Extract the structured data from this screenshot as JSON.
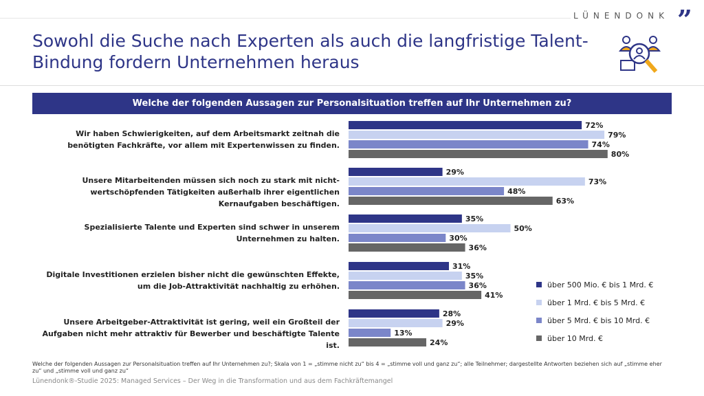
{
  "header": {
    "title": "Sowohl die Suche nach Experten als auch die langfristige Talent-Bindung fordern Unternehmen heraus",
    "logo": "LÜNENDONK",
    "icon": "talent-search-icon"
  },
  "chart_data": {
    "type": "bar",
    "orientation": "horizontal",
    "title": "Welche der folgenden Aussagen zur Personalsituation treffen auf Ihr Unternehmen zu?",
    "categories": [
      "Wir haben Schwierigkeiten, auf dem Arbeitsmarkt zeitnah die benötigten Fachkräfte, vor allem mit Expertenwissen zu finden.",
      "Unsere Mitarbeitenden müssen sich noch zu stark mit nicht-wertschöpfenden Tätigkeiten außerhalb ihrer eigentlichen Kernaufgaben beschäftigen.",
      "Spezialisierte Talente und Experten sind schwer in unserem Unternehmen zu halten.",
      "Digitale Investitionen erzielen bisher nicht die gewünschten Effekte, um die Job-Attraktivität nachhaltig zu erhöhen.",
      "Unsere Arbeitgeber-Attraktivität ist gering, weil ein Großteil der Aufgaben nicht mehr attraktiv für Bewerber und beschäftigte Talente ist."
    ],
    "series": [
      {
        "name": "über 500 Mio. € bis 1 Mrd. €",
        "color": "#2e3587",
        "values": [
          72,
          29,
          35,
          31,
          28
        ]
      },
      {
        "name": "über 1 Mrd. € bis 5 Mrd. €",
        "color": "#c7d2f0",
        "values": [
          79,
          73,
          50,
          35,
          29
        ]
      },
      {
        "name": "über 5 Mrd. € bis 10 Mrd. €",
        "color": "#7b86c9",
        "values": [
          74,
          48,
          30,
          36,
          13
        ]
      },
      {
        "name": "über 10 Mrd. €",
        "color": "#666666",
        "values": [
          80,
          63,
          36,
          41,
          24
        ]
      }
    ],
    "unit": "%",
    "legend": "right",
    "grid": false
  },
  "footer": {
    "note": "Welche der folgenden Aussagen zur Personalsituation treffen auf Ihr Unternehmen zu?; Skala von 1 = „stimme nicht zu“ bis 4 = „stimme voll und ganz zu“; alle Teilnehmer; dargestellte Antworten beziehen sich auf „stimme eher zu“ und „stimme voll und ganz zu“",
    "source": "Lünendonk®-Studie 2025: Managed Services – Der Weg in die Transformation und aus dem Fachkräftemangel"
  }
}
